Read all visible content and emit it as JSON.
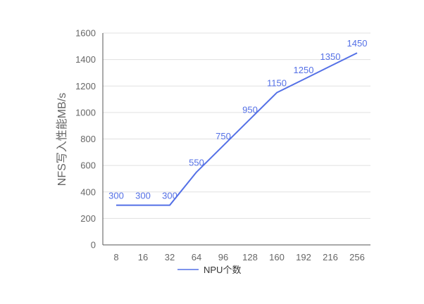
{
  "chart_data": {
    "type": "line",
    "title": "",
    "xlabel": "",
    "ylabel": "NFS写入性能MB/s",
    "ylim": [
      0,
      1600
    ],
    "ytick_step": 200,
    "grid": true,
    "legend_position": "bottom",
    "categories": [
      "8",
      "16",
      "32",
      "64",
      "96",
      "128",
      "160",
      "192",
      "216",
      "256"
    ],
    "series": [
      {
        "name": "NPU个数",
        "color": "#5470e6",
        "values": [
          300,
          300,
          300,
          550,
          750,
          950,
          1150,
          1250,
          1350,
          1450
        ],
        "labels": [
          "300",
          "300",
          "300",
          "550",
          "750",
          "950",
          "1150",
          "1250",
          "1350",
          "1450"
        ]
      }
    ]
  }
}
